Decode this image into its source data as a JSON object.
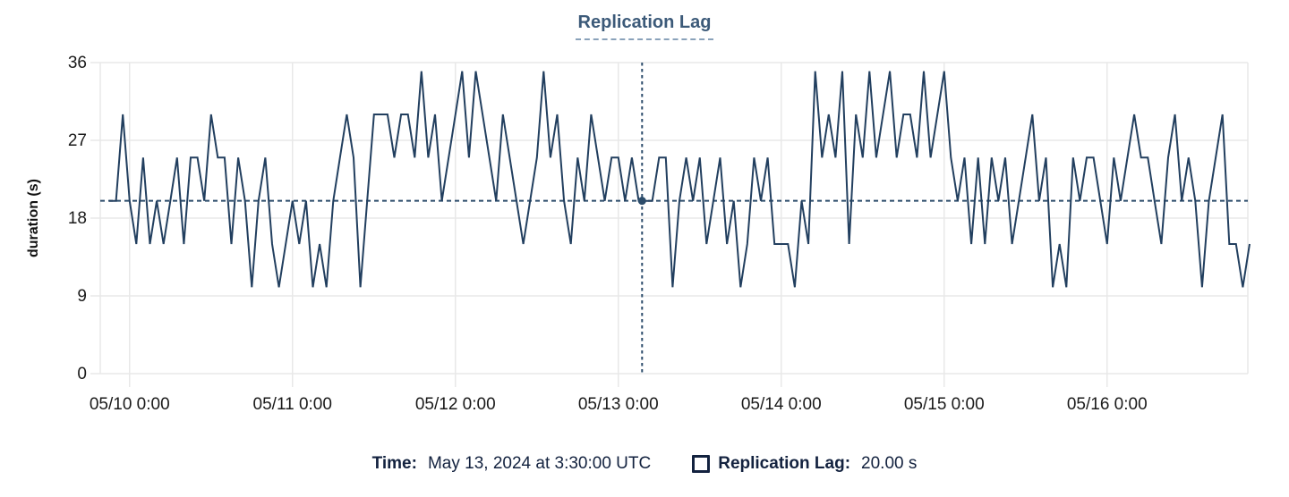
{
  "chart": {
    "title": "Replication Lag",
    "ylabel": "duration (s)"
  },
  "tooltip": {
    "time_label": "Time:",
    "time_value": "May 13, 2024 at 3:30:00 UTC",
    "series_label": "Replication Lag:",
    "series_value": "20.00 s",
    "swatch_icon": "square-outline"
  },
  "colors": {
    "line": "#223f5f",
    "crosshair": "#2c4c6b",
    "grid": "#e8e8e8",
    "title": "#3c5a79",
    "tick_text": "#1a1a1a",
    "tooltip_text": "#13223f"
  },
  "chart_data": {
    "type": "line",
    "title": "Replication Lag",
    "xlabel": "",
    "ylabel": "duration (s)",
    "ylim": [
      0,
      36
    ],
    "y_ticks": [
      0,
      9,
      18,
      27,
      36
    ],
    "x_tick_labels": [
      "05/10 0:00",
      "05/11 0:00",
      "05/12 0:00",
      "05/13 0:00",
      "05/14 0:00",
      "05/15 0:00",
      "05/16 0:00"
    ],
    "grid": true,
    "legend_position": "bottom",
    "interval_hours": 1,
    "first_point_offset_hours": -3,
    "series": [
      {
        "name": "Replication Lag",
        "color": "#223f5f",
        "values": [
          20,
          20,
          30,
          20,
          15,
          25,
          15,
          20,
          15,
          20,
          25,
          15,
          25,
          25,
          20,
          30,
          25,
          25,
          15,
          25,
          20,
          10,
          20,
          25,
          15,
          10,
          15,
          20,
          15,
          20,
          10,
          15,
          10,
          20,
          25,
          30,
          25,
          10,
          20,
          30,
          30,
          30,
          25,
          30,
          30,
          25,
          35,
          25,
          30,
          20,
          25,
          30,
          35,
          25,
          35,
          30,
          25,
          20,
          30,
          25,
          20,
          15,
          20,
          25,
          35,
          25,
          30,
          20,
          15,
          25,
          20,
          30,
          25,
          20,
          25,
          25,
          20,
          25,
          20,
          20,
          20,
          25,
          25,
          10,
          20,
          25,
          20,
          25,
          15,
          20,
          25,
          15,
          20,
          10,
          15,
          25,
          20,
          25,
          15,
          15,
          15,
          10,
          20,
          15,
          35,
          25,
          30,
          25,
          35,
          15,
          30,
          25,
          35,
          25,
          30,
          35,
          25,
          30,
          30,
          25,
          35,
          25,
          30,
          35,
          25,
          20,
          25,
          15,
          25,
          15,
          25,
          20,
          25,
          15,
          20,
          25,
          30,
          20,
          25,
          10,
          15,
          10,
          25,
          20,
          25,
          25,
          20,
          15,
          25,
          20,
          25,
          30,
          25,
          25,
          20,
          15,
          25,
          30,
          20,
          25,
          20,
          10,
          20,
          25,
          30,
          15,
          15,
          10,
          15
        ]
      }
    ],
    "crosshair": {
      "offset_hours_from_first_tick": 75.5,
      "value": 20,
      "time_label": "May 13, 2024 at 3:30:00 UTC",
      "value_label": "20.00 s"
    }
  }
}
